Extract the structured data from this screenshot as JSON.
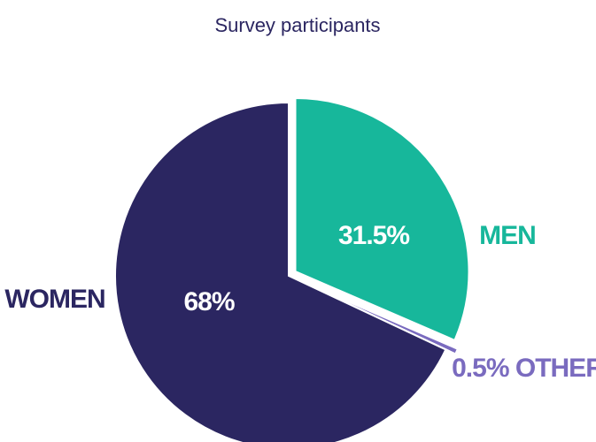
{
  "chart_data": {
    "type": "pie",
    "title": "Survey participants",
    "categories": [
      "MEN",
      "OTHER",
      "WOMEN"
    ],
    "values": [
      31.5,
      0.5,
      68
    ],
    "value_labels": [
      "31.5%",
      "0.5%",
      "68%"
    ],
    "colors": [
      "#17b79b",
      "#7a6bbf",
      "#2b2661"
    ]
  }
}
